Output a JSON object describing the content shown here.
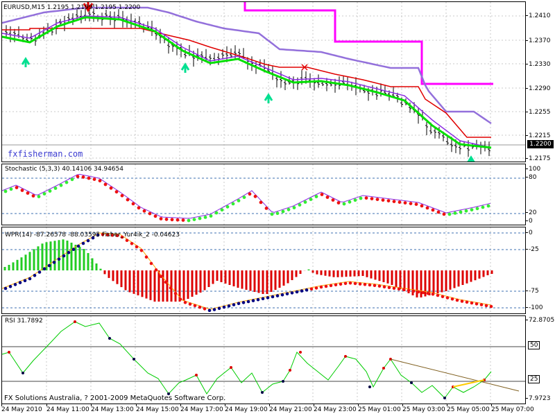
{
  "colors": {
    "ma_magenta": "#ff00ff",
    "ma_purple": "#9370db",
    "ma_red": "#e00000",
    "ma_green": "#00e000",
    "bar": "#000000",
    "arrow": "#00e090",
    "sell": "#e00000",
    "stoch_line": "#8a2be2",
    "dot_green": "#33ee33",
    "dot_red": "#ee1111",
    "hist_green": "#22cc22",
    "hist_red": "#dd0000",
    "dot_navy": "#000080",
    "wpr_line": "#ffa500",
    "rsi_line": "#00cc00",
    "trend": "#806020",
    "trend_yellow": "#ffcc00",
    "grid": "#c8c8c8",
    "level": "#888888"
  },
  "main": {
    "title": "EURUSD,M15  1.2195 1.2199 1.2195 1.2200",
    "price_ticks": [
      "1.2410",
      "1.2370",
      "1.2330",
      "1.2290",
      "1.2255",
      "1.2215",
      "1.2175"
    ],
    "current_price": "1.2200",
    "watermark": "fxfisherman.com",
    "icons": [
      "up-arrow-icon",
      "sell-arrow-icon",
      "cross-icon"
    ]
  },
  "stochastic": {
    "title": "Stochastic  (5,3,3) 40.14106 34.94654",
    "ticks": [
      "100",
      "80",
      "20",
      "0"
    ]
  },
  "wpr": {
    "title": "WPR(14) -87.26578 -88.03595  Fisher_Yur4ik_2 -0.04623",
    "ticks": [
      "0",
      "-25",
      "-75",
      "-100"
    ]
  },
  "rsi": {
    "title": "RSI 31.7892",
    "ticks": [
      "72.8705",
      "50",
      "25",
      "7.9723"
    ],
    "copyright": "FX Solutions Australia, ? 2001-2009 MetaQuotes Software Corp."
  },
  "time_axis": [
    "24 May 2010",
    "24 May 11:00",
    "24 May 13:00",
    "24 May 15:00",
    "24 May 17:00",
    "24 May 19:00",
    "24 May 21:00",
    "24 May 23:00",
    "25 May 01:00",
    "25 May 03:00",
    "25 May 05:00",
    "25 May 07:00"
  ]
}
